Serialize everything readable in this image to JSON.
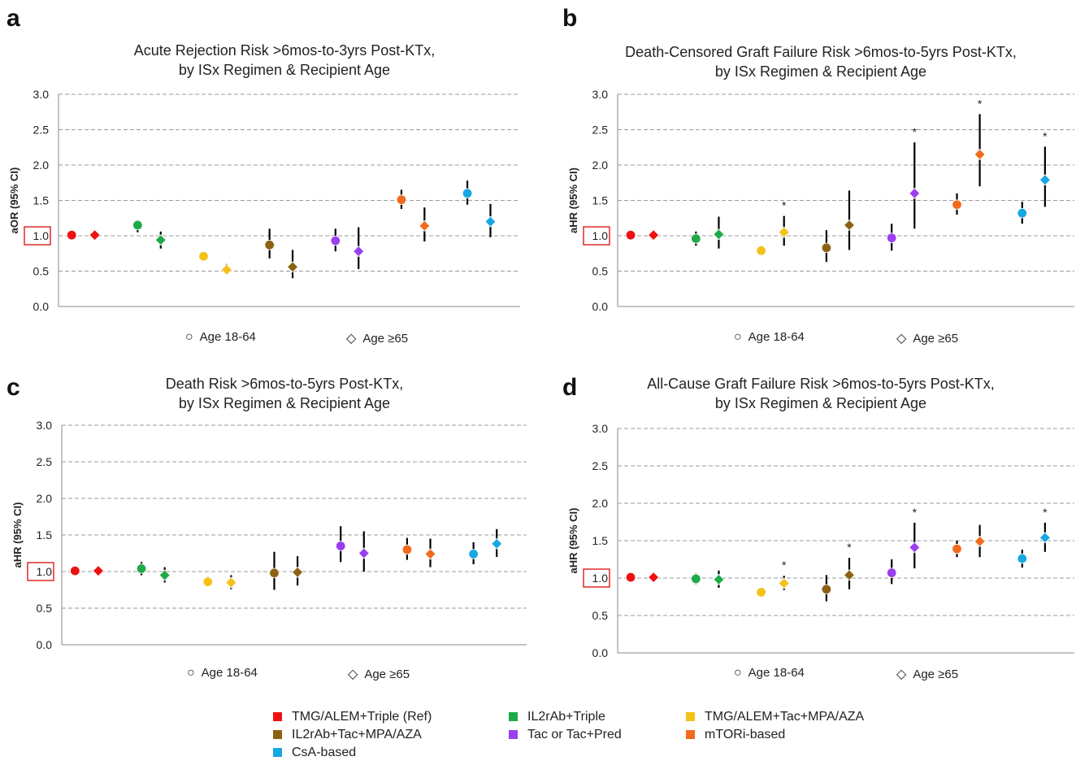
{
  "colors": {
    "ref": "#ee1111",
    "il2": "#1faa4a",
    "tmgtac": "#f5c118",
    "il2tac": "#8b6214",
    "tac": "#9a3ff0",
    "mtor": "#f26b1d",
    "csa": "#17a8e3"
  },
  "legend": [
    {
      "key": "ref",
      "label": "TMG/ALEM+Triple (Ref)"
    },
    {
      "key": "il2",
      "label": "IL2rAb+Triple"
    },
    {
      "key": "tmgtac",
      "label": "TMG/ALEM+Tac+MPA/AZA"
    },
    {
      "key": "il2tac",
      "label": "IL2rAb+Tac+MPA/AZA"
    },
    {
      "key": "tac",
      "label": "Tac or Tac+Pred"
    },
    {
      "key": "mtor",
      "label": "mTORi-based"
    },
    {
      "key": "csa",
      "label": "CsA-based"
    }
  ],
  "age_key": {
    "young": "Age 18-64",
    "old": "Age ≥65",
    "young_symbol": "○",
    "old_symbol": "◇"
  },
  "panels": [
    {
      "letter": "a",
      "title_line1": "Acute Rejection Risk >6mos-to-3yrs Post-KTx,",
      "title_line2": "by ISx Regimen & Recipient Age",
      "ylabel": "aOR (95% CI)",
      "ticks": [
        "3.0",
        "2.5",
        "2.0",
        "1.5",
        "1.0",
        "0.5",
        "0.0"
      ]
    },
    {
      "letter": "b",
      "title_line1": "Death-Censored Graft Failure Risk >6mos-to-5yrs Post-KTx,",
      "title_line2": "by ISx Regimen & Recipient Age",
      "ylabel": "aHR (95% CI)",
      "ticks": [
        "3.0",
        "2.5",
        "2.0",
        "1.5",
        "1.0",
        "0.5",
        "0.0"
      ]
    },
    {
      "letter": "c",
      "title_line1": "Death Risk >6mos-to-5yrs Post-KTx,",
      "title_line2": "by ISx Regimen & Recipient Age",
      "ylabel": "aHR (95% CI)",
      "ticks": [
        "3.0",
        "2.5",
        "2.0",
        "1.5",
        "1.0",
        "0.5",
        "0.0"
      ]
    },
    {
      "letter": "d",
      "title_line1": "All-Cause Graft Failure Risk >6mos-to-5yrs Post-KTx,",
      "title_line2": "by ISx Regimen & Recipient Age",
      "ylabel": "aHR (95% CI)",
      "ticks": [
        "3.0",
        "2.5",
        "2.0",
        "1.5",
        "1.0",
        "0.5",
        "0.0"
      ]
    }
  ],
  "chart_data": [
    {
      "type": "scatter",
      "panel": "a",
      "ylim": [
        0,
        3
      ],
      "reference_line": 1.0,
      "grid": true,
      "points": [
        {
          "group": "ref",
          "age": "18-64",
          "est": 1.01
        },
        {
          "group": "ref",
          "age": "≥65",
          "est": 1.01
        },
        {
          "group": "il2",
          "age": "18-64",
          "est": 1.15,
          "lo": 1.05,
          "hi": 1.22
        },
        {
          "group": "il2",
          "age": "≥65",
          "est": 0.94,
          "lo": 0.82,
          "hi": 1.06
        },
        {
          "group": "tmgtac",
          "age": "18-64",
          "est": 0.71,
          "lo": 0.66,
          "hi": 0.75
        },
        {
          "group": "tmgtac",
          "age": "≥65",
          "est": 0.52,
          "lo": 0.45,
          "hi": 0.6
        },
        {
          "group": "il2tac",
          "age": "18-64",
          "est": 0.87,
          "lo": 0.68,
          "hi": 1.1
        },
        {
          "group": "il2tac",
          "age": "≥65",
          "est": 0.56,
          "lo": 0.4,
          "hi": 0.8
        },
        {
          "group": "tac",
          "age": "18-64",
          "est": 0.93,
          "lo": 0.78,
          "hi": 1.1
        },
        {
          "group": "tac",
          "age": "≥65",
          "est": 0.78,
          "lo": 0.53,
          "hi": 1.12
        },
        {
          "group": "mtor",
          "age": "18-64",
          "est": 1.51,
          "lo": 1.38,
          "hi": 1.65
        },
        {
          "group": "mtor",
          "age": "≥65",
          "est": 1.14,
          "lo": 0.92,
          "hi": 1.4
        },
        {
          "group": "csa",
          "age": "18-64",
          "est": 1.6,
          "lo": 1.44,
          "hi": 1.78
        },
        {
          "group": "csa",
          "age": "≥65",
          "est": 1.2,
          "lo": 0.98,
          "hi": 1.45
        }
      ]
    },
    {
      "type": "scatter",
      "panel": "b",
      "ylim": [
        0,
        3
      ],
      "reference_line": 1.0,
      "grid": true,
      "points": [
        {
          "group": "ref",
          "age": "18-64",
          "est": 1.01
        },
        {
          "group": "ref",
          "age": "≥65",
          "est": 1.01
        },
        {
          "group": "il2",
          "age": "18-64",
          "est": 0.96,
          "lo": 0.86,
          "hi": 1.06
        },
        {
          "group": "il2",
          "age": "≥65",
          "est": 1.02,
          "lo": 0.82,
          "hi": 1.27
        },
        {
          "group": "tmgtac",
          "age": "18-64",
          "est": 0.79,
          "lo": 0.72,
          "hi": 0.86
        },
        {
          "group": "tmgtac",
          "age": "≥65",
          "est": 1.05,
          "lo": 0.86,
          "hi": 1.28,
          "sig": "*"
        },
        {
          "group": "il2tac",
          "age": "18-64",
          "est": 0.83,
          "lo": 0.63,
          "hi": 1.08
        },
        {
          "group": "il2tac",
          "age": "≥65",
          "est": 1.15,
          "lo": 0.8,
          "hi": 1.64
        },
        {
          "group": "tac",
          "age": "18-64",
          "est": 0.97,
          "lo": 0.79,
          "hi": 1.17
        },
        {
          "group": "tac",
          "age": "≥65",
          "est": 1.6,
          "lo": 1.1,
          "hi": 2.32,
          "sig": "*"
        },
        {
          "group": "mtor",
          "age": "18-64",
          "est": 1.44,
          "lo": 1.3,
          "hi": 1.6
        },
        {
          "group": "mtor",
          "age": "≥65",
          "est": 2.15,
          "lo": 1.7,
          "hi": 2.72,
          "sig": "*"
        },
        {
          "group": "csa",
          "age": "18-64",
          "est": 1.32,
          "lo": 1.17,
          "hi": 1.48
        },
        {
          "group": "csa",
          "age": "≥65",
          "est": 1.79,
          "lo": 1.41,
          "hi": 2.26,
          "sig": "*"
        }
      ]
    },
    {
      "type": "scatter",
      "panel": "c",
      "ylim": [
        0,
        3
      ],
      "reference_line": 1.0,
      "grid": true,
      "points": [
        {
          "group": "ref",
          "age": "18-64",
          "est": 1.01
        },
        {
          "group": "ref",
          "age": "≥65",
          "est": 1.01
        },
        {
          "group": "il2",
          "age": "18-64",
          "est": 1.04,
          "lo": 0.95,
          "hi": 1.13
        },
        {
          "group": "il2",
          "age": "≥65",
          "est": 0.95,
          "lo": 0.85,
          "hi": 1.06
        },
        {
          "group": "tmgtac",
          "age": "18-64",
          "est": 0.86,
          "lo": 0.8,
          "hi": 0.93
        },
        {
          "group": "tmgtac",
          "age": "≥65",
          "est": 0.85,
          "lo": 0.76,
          "hi": 0.95
        },
        {
          "group": "il2tac",
          "age": "18-64",
          "est": 0.98,
          "lo": 0.75,
          "hi": 1.27
        },
        {
          "group": "il2tac",
          "age": "≥65",
          "est": 0.99,
          "lo": 0.81,
          "hi": 1.21
        },
        {
          "group": "tac",
          "age": "18-64",
          "est": 1.35,
          "lo": 1.13,
          "hi": 1.62
        },
        {
          "group": "tac",
          "age": "≥65",
          "est": 1.25,
          "lo": 1.0,
          "hi": 1.55
        },
        {
          "group": "mtor",
          "age": "18-64",
          "est": 1.3,
          "lo": 1.16,
          "hi": 1.46
        },
        {
          "group": "mtor",
          "age": "≥65",
          "est": 1.24,
          "lo": 1.06,
          "hi": 1.45
        },
        {
          "group": "csa",
          "age": "18-64",
          "est": 1.24,
          "lo": 1.1,
          "hi": 1.4
        },
        {
          "group": "csa",
          "age": "≥65",
          "est": 1.38,
          "lo": 1.2,
          "hi": 1.58
        }
      ]
    },
    {
      "type": "scatter",
      "panel": "d",
      "ylim": [
        0,
        3
      ],
      "reference_line": 1.0,
      "grid": true,
      "points": [
        {
          "group": "ref",
          "age": "18-64",
          "est": 1.01
        },
        {
          "group": "ref",
          "age": "≥65",
          "est": 1.01
        },
        {
          "group": "il2",
          "age": "18-64",
          "est": 0.99,
          "lo": 0.92,
          "hi": 1.06
        },
        {
          "group": "il2",
          "age": "≥65",
          "est": 0.98,
          "lo": 0.87,
          "hi": 1.1
        },
        {
          "group": "tmgtac",
          "age": "18-64",
          "est": 0.81,
          "lo": 0.76,
          "hi": 0.86
        },
        {
          "group": "tmgtac",
          "age": "≥65",
          "est": 0.93,
          "lo": 0.84,
          "hi": 1.03,
          "sig": "*"
        },
        {
          "group": "il2tac",
          "age": "18-64",
          "est": 0.85,
          "lo": 0.69,
          "hi": 1.04
        },
        {
          "group": "il2tac",
          "age": "≥65",
          "est": 1.04,
          "lo": 0.85,
          "hi": 1.27,
          "sig": "*"
        },
        {
          "group": "tac",
          "age": "18-64",
          "est": 1.07,
          "lo": 0.92,
          "hi": 1.25
        },
        {
          "group": "tac",
          "age": "≥65",
          "est": 1.41,
          "lo": 1.13,
          "hi": 1.74,
          "sig": "*"
        },
        {
          "group": "mtor",
          "age": "18-64",
          "est": 1.39,
          "lo": 1.28,
          "hi": 1.5
        },
        {
          "group": "mtor",
          "age": "≥65",
          "est": 1.49,
          "lo": 1.28,
          "hi": 1.71
        },
        {
          "group": "csa",
          "age": "18-64",
          "est": 1.26,
          "lo": 1.14,
          "hi": 1.38
        },
        {
          "group": "csa",
          "age": "≥65",
          "est": 1.54,
          "lo": 1.35,
          "hi": 1.74,
          "sig": "*"
        }
      ]
    }
  ]
}
